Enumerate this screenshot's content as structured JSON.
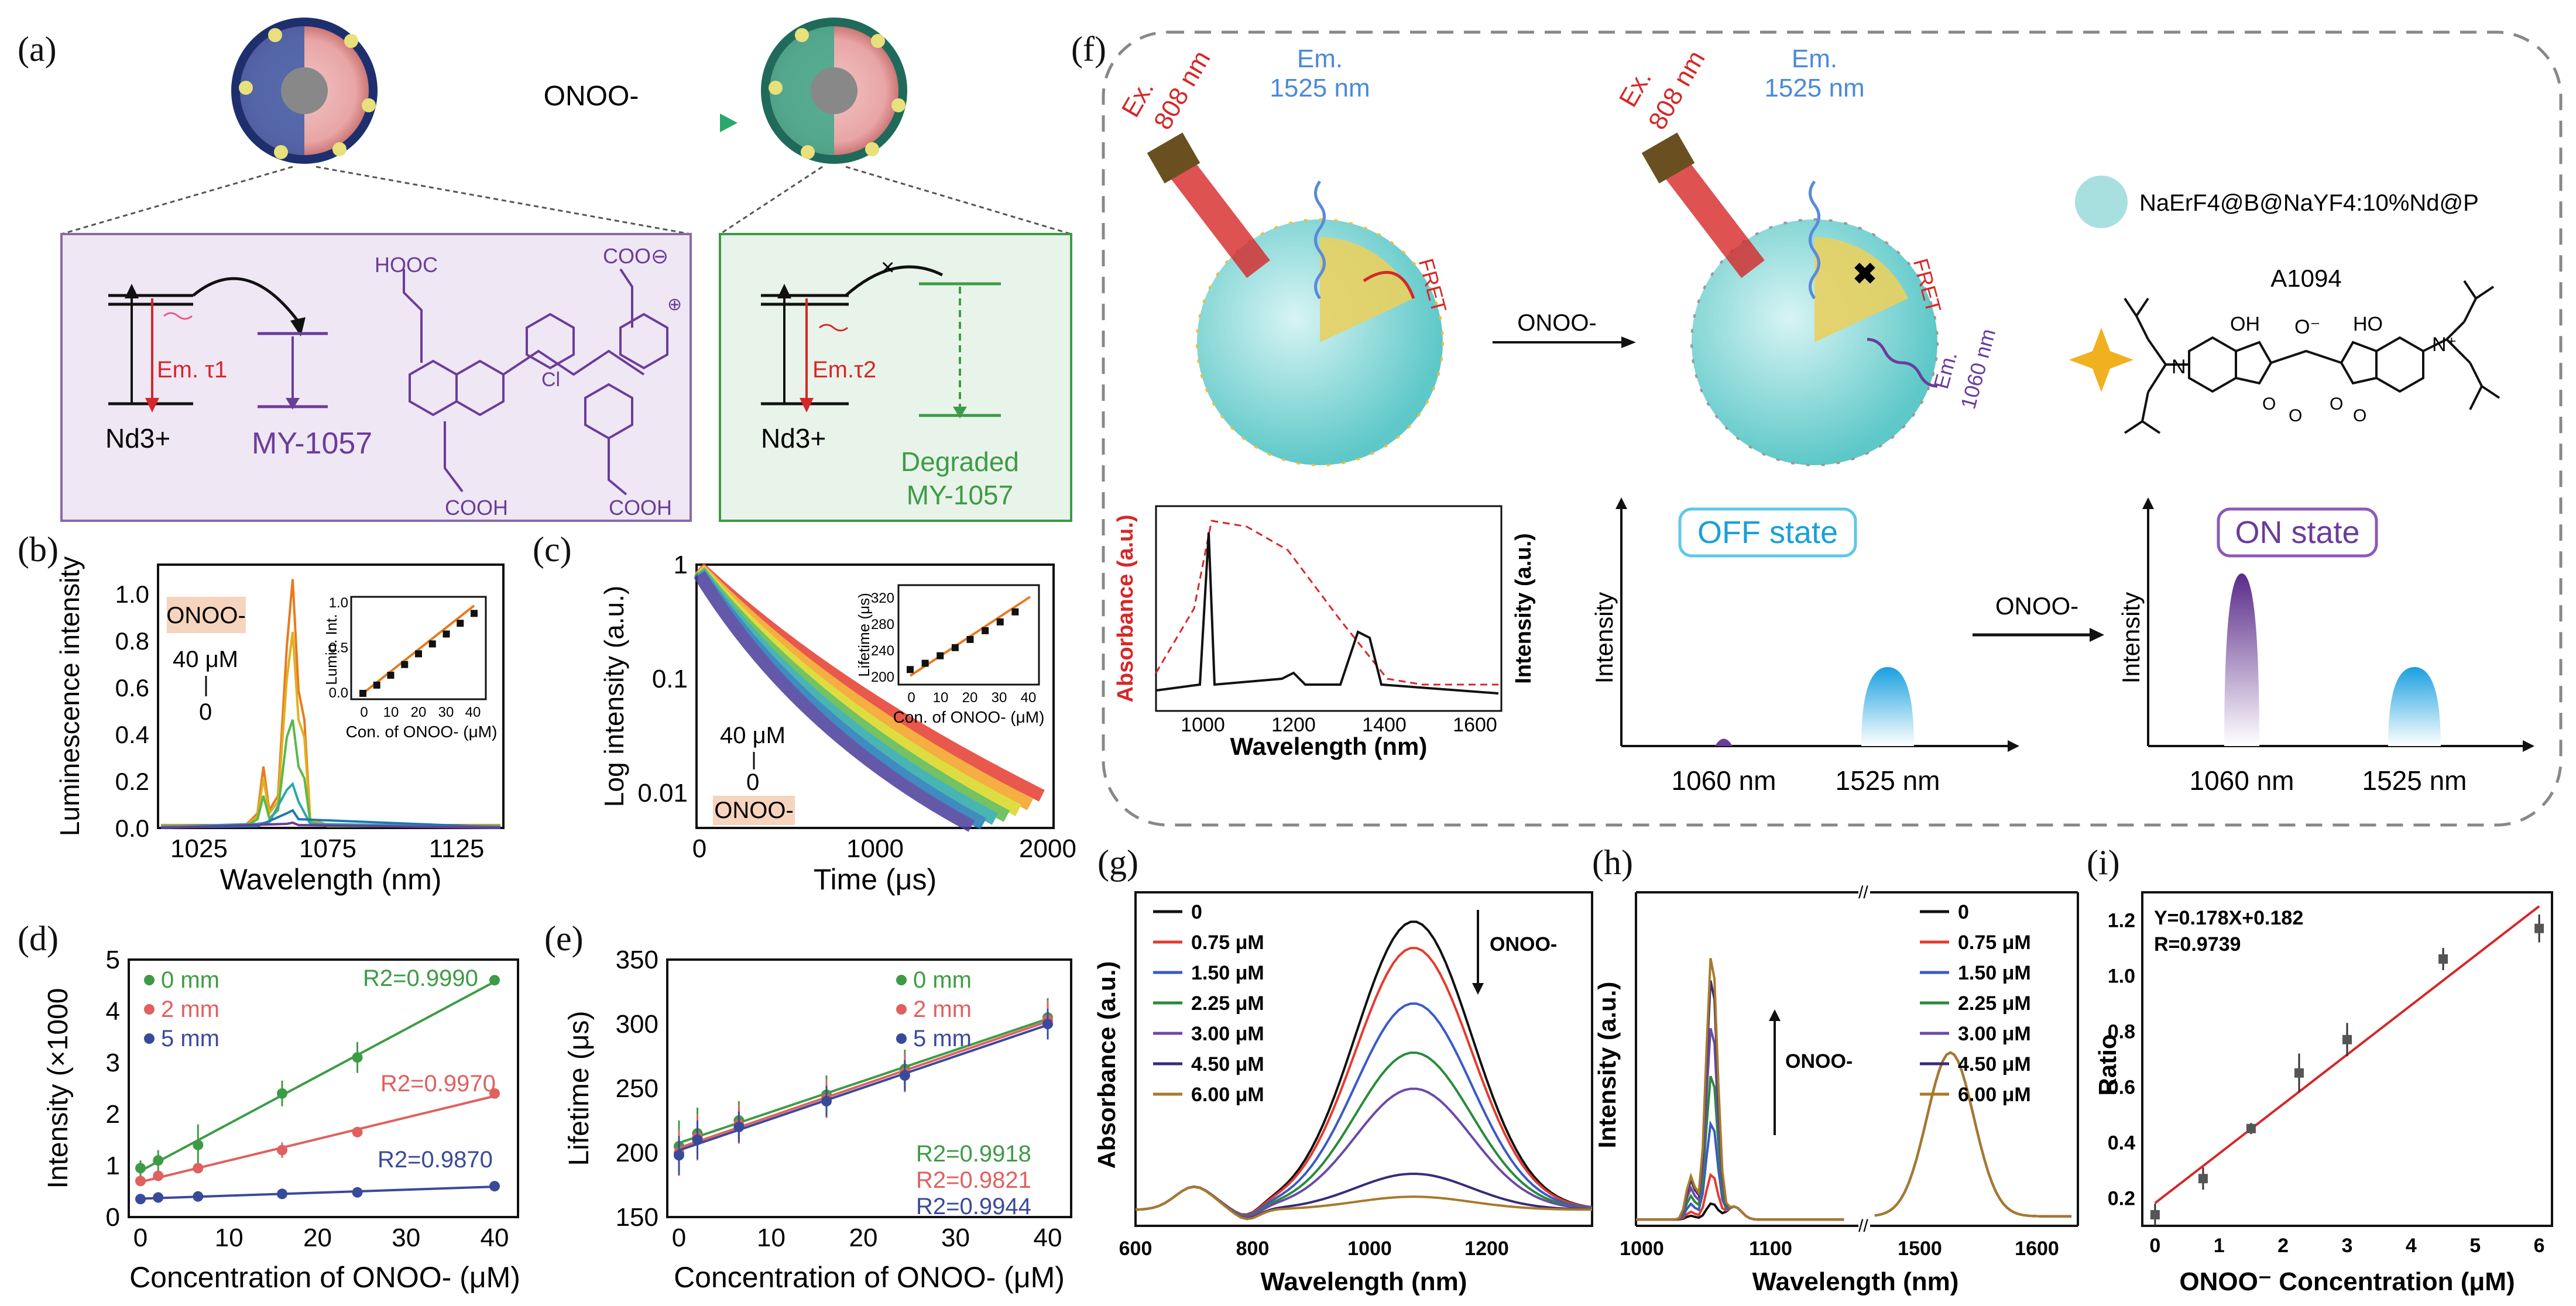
{
  "panel_labels": {
    "a": "(a)",
    "b": "(b)",
    "c": "(c)",
    "d": "(d)",
    "e": "(e)",
    "f": "(f)",
    "g": "(g)",
    "h": "(h)",
    "i": "(i)"
  },
  "colors": {
    "purple": "#6a3d9a",
    "green": "#3e9b45",
    "red": "#d62728",
    "blue": "#1f77b4",
    "teal": "#5ec8c8"
  },
  "panel_a": {
    "arrow_label": "ONOO-",
    "left_box": {
      "ion": "Nd3+",
      "em": "Em. τ1",
      "dye": "MY-1057",
      "hooc": "HOOC",
      "coo": "COO⊖",
      "cl": "Cl",
      "plus": "⊕",
      "cooh1": "COOH",
      "cooh2": "COOH"
    },
    "right_box": {
      "ion": "Nd3+",
      "em": "Em.τ2",
      "dye_line1": "Degraded",
      "dye_line2": "MY-1057"
    }
  },
  "panel_b": {
    "ylabel": "Luminescence intensity",
    "xlabel": "Wavelength (nm)",
    "xticks": [
      "1025",
      "1075",
      "1125"
    ],
    "yticks": [
      "0.0",
      "0.2",
      "0.4",
      "0.6",
      "0.8",
      "1.0"
    ],
    "tag": "ONOO-",
    "conc_top": "40 μM",
    "conc_bottom": "0",
    "inset": {
      "ylabel": "Lumin. Int.",
      "xlabel": "Con. of ONOO- (μM)",
      "xticks": [
        "0",
        "10",
        "20",
        "30",
        "40"
      ],
      "yticks": [
        "0.0",
        "0.5",
        "1.0"
      ]
    }
  },
  "panel_c": {
    "ylabel": "Log intensity (a.u.)",
    "xlabel": "Time (μs)",
    "xticks": [
      "0",
      "1000",
      "2000"
    ],
    "yticks": [
      "1",
      "0.1",
      "0.01"
    ],
    "tag": "ONOO-",
    "conc_top": "40 μM",
    "conc_bottom": "0",
    "inset": {
      "ylabel": "Lifetime (μs)",
      "xlabel": "Con. of ONOO- (μM)",
      "xticks": [
        "0",
        "10",
        "20",
        "30",
        "40"
      ],
      "yticks": [
        "200",
        "240",
        "280",
        "320"
      ]
    }
  },
  "panel_d": {
    "ylabel": "Intensity (×1000",
    "xlabel": "Concentration of ONOO- (μM)",
    "xticks": [
      "0",
      "10",
      "20",
      "30",
      "40"
    ],
    "yticks": [
      "0",
      "1",
      "2",
      "3",
      "4",
      "5"
    ],
    "legend": [
      "0 mm",
      "2 mm",
      "5 mm"
    ],
    "r2": [
      "R2=0.9990",
      "R2=0.9970",
      "R2=0.9870"
    ]
  },
  "panel_e": {
    "ylabel": "Lifetime (μs)",
    "xlabel": "Concentration of ONOO- (μM)",
    "xticks": [
      "0",
      "10",
      "20",
      "30",
      "40"
    ],
    "yticks": [
      "150",
      "200",
      "250",
      "300",
      "350"
    ],
    "legend": [
      "0 mm",
      "2 mm",
      "5 mm"
    ],
    "r2": [
      "R2=0.9918",
      "R2=0.9821",
      "R2=0.9944"
    ]
  },
  "panel_f": {
    "ex1": "Ex.",
    "ex1b": "808 nm",
    "em1": "Em.",
    "em1b": "1525 nm",
    "fret1": "FRET",
    "arrow": "ONOO-",
    "ex2": "Ex.",
    "ex2b": "808 nm",
    "em2": "Em.",
    "em2b": "1525 nm",
    "fret2": "FRET",
    "em3": "Em.",
    "em3b": "1060 nm",
    "np_label": "NaErF4@B@NaYF4:10%Nd@P",
    "dye": "A1094",
    "oh1": "OH",
    "o_minus": "O⁻",
    "oh2": "HO",
    "n1": "N",
    "n2": "N⁺",
    "o1": "O",
    "o2": "O",
    "o3": "O",
    "o4": "O",
    "spec": {
      "ylabel_left": "Absorbance (a.u.)",
      "ylabel_right": "Intensity (a.u.)",
      "xlabel": "Wavelength (nm)",
      "xticks": [
        "1000",
        "1200",
        "1400",
        "1600"
      ]
    },
    "off": {
      "title": "OFF state",
      "ylabel": "Intensity",
      "x1": "1060 nm",
      "x2": "1525 nm"
    },
    "arrow2": "ONOO-",
    "on": {
      "title": "ON state",
      "ylabel": "Intensity",
      "x1": "1060 nm",
      "x2": "1525 nm"
    }
  },
  "panel_g": {
    "ylabel": "Absorbance (a.u.)",
    "xlabel": "Wavelength (nm)",
    "xticks": [
      "600",
      "800",
      "1000",
      "1200"
    ],
    "legend": [
      "0",
      "0.75 μM",
      "1.50 μM",
      "2.25 μM",
      "3.00 μM",
      "4.50 μM",
      "6.00 μM"
    ],
    "arrow_label": "ONOO-"
  },
  "panel_h": {
    "ylabel": "Intensity (a.u.)",
    "xlabel": "Wavelength (nm)",
    "xticks": [
      "1000",
      "1100",
      "1500",
      "1600"
    ],
    "legend": [
      "0",
      "0.75 μM",
      "1.50 μM",
      "2.25 μM",
      "3.00 μM",
      "4.50 μM",
      "6.00 μM"
    ],
    "arrow_label": "ONOO-"
  },
  "panel_i": {
    "ylabel": "Ratio",
    "xlabel": "ONOO⁻ Concentration (μM)",
    "xticks": [
      "0",
      "1",
      "2",
      "3",
      "4",
      "5",
      "6"
    ],
    "yticks": [
      "0.2",
      "0.4",
      "0.6",
      "0.8",
      "1.0",
      "1.2"
    ],
    "eq": "Y=0.178X+0.182",
    "r": "R=0.9739"
  },
  "chart_data": [
    {
      "id": "b-inset",
      "type": "scatter",
      "title": "",
      "xlabel": "Con. of ONOO- (μM)",
      "ylabel": "Lumin. Int.",
      "x": [
        0,
        5,
        10,
        15,
        20,
        25,
        30,
        35,
        40
      ],
      "values": [
        0.0,
        0.1,
        0.22,
        0.35,
        0.48,
        0.6,
        0.72,
        0.85,
        0.97
      ],
      "xlim": [
        0,
        40
      ],
      "ylim": [
        0,
        1.1
      ]
    },
    {
      "id": "c-inset",
      "type": "scatter",
      "xlabel": "Con. of ONOO- (μM)",
      "ylabel": "Lifetime (μs)",
      "x": [
        0,
        5,
        10,
        15,
        20,
        25,
        30,
        35
      ],
      "values": [
        200,
        210,
        222,
        235,
        248,
        262,
        276,
        292
      ],
      "xlim": [
        0,
        40
      ],
      "ylim": [
        190,
        330
      ]
    },
    {
      "id": "d",
      "type": "scatter",
      "xlabel": "Concentration of ONOO- (μM)",
      "ylabel": "Intensity (×1000",
      "x": [
        0,
        2,
        6.5,
        16,
        24.5,
        40
      ],
      "xlim": [
        0,
        40
      ],
      "ylim": [
        0,
        5
      ],
      "series": [
        {
          "name": "0 mm",
          "values": [
            0.95,
            1.1,
            1.4,
            2.4,
            3.1,
            4.6
          ],
          "errors": [
            0.15,
            0.2,
            0.4,
            0.25,
            0.3,
            0.05
          ]
        },
        {
          "name": "2 mm",
          "values": [
            0.7,
            0.8,
            0.95,
            1.3,
            1.65,
            2.4
          ],
          "errors": [
            0.08,
            0.1,
            0.1,
            0.15,
            0.1,
            0.05
          ]
        },
        {
          "name": "5 mm",
          "values": [
            0.35,
            0.38,
            0.4,
            0.45,
            0.48,
            0.6
          ],
          "errors": [
            0.02,
            0.03,
            0.03,
            0.03,
            0.03,
            0.03
          ]
        }
      ]
    },
    {
      "id": "e",
      "type": "scatter",
      "xlabel": "Concentration of ONOO- (μM)",
      "ylabel": "Lifetime (μs)",
      "x": [
        0,
        2,
        6.5,
        16,
        24.5,
        40
      ],
      "xlim": [
        0,
        40
      ],
      "ylim": [
        150,
        350
      ],
      "series": [
        {
          "name": "0 mm",
          "values": [
            205,
            215,
            225,
            245,
            265,
            305
          ],
          "errors": [
            20,
            20,
            15,
            15,
            15,
            15
          ]
        },
        {
          "name": "2 mm",
          "values": [
            200,
            212,
            222,
            242,
            262,
            303
          ],
          "errors": [
            18,
            18,
            15,
            15,
            15,
            15
          ]
        },
        {
          "name": "5 mm",
          "values": [
            198,
            210,
            220,
            240,
            260,
            300
          ],
          "errors": [
            15,
            15,
            12,
            12,
            12,
            12
          ]
        }
      ]
    },
    {
      "id": "i",
      "type": "scatter",
      "xlabel": "ONOO⁻ Concentration (μM)",
      "ylabel": "Ratio",
      "x": [
        0,
        0.75,
        1.5,
        2.25,
        3.0,
        4.5,
        6.0
      ],
      "values": [
        0.14,
        0.27,
        0.45,
        0.65,
        0.77,
        1.06,
        1.17
      ],
      "errors": [
        0.04,
        0.04,
        0.02,
        0.07,
        0.06,
        0.04,
        0.05
      ],
      "fit": {
        "slope": 0.178,
        "intercept": 0.182
      },
      "xlim": [
        -0.2,
        6.2
      ],
      "ylim": [
        0.1,
        1.3
      ]
    },
    {
      "id": "g",
      "type": "line",
      "xlabel": "Wavelength (nm)",
      "ylabel": "Absorbance (a.u.)",
      "x": [
        600,
        700,
        800,
        1000,
        1075,
        1200,
        1380
      ],
      "xlim": [
        600,
        1380
      ],
      "series": [
        {
          "name": "0",
          "values": [
            0.05,
            0.1,
            0.05,
            0.8,
            0.88,
            0.7,
            0.05
          ]
        },
        {
          "name": "0.75 μM",
          "values": [
            0.05,
            0.1,
            0.05,
            0.74,
            0.8,
            0.64,
            0.05
          ]
        },
        {
          "name": "1.50 μM",
          "values": [
            0.05,
            0.1,
            0.05,
            0.58,
            0.63,
            0.5,
            0.05
          ]
        },
        {
          "name": "2.25 μM",
          "values": [
            0.05,
            0.1,
            0.05,
            0.44,
            0.48,
            0.38,
            0.05
          ]
        },
        {
          "name": "3.00 μM",
          "values": [
            0.05,
            0.11,
            0.05,
            0.34,
            0.37,
            0.3,
            0.05
          ]
        },
        {
          "name": "4.50 μM",
          "values": [
            0.04,
            0.11,
            0.05,
            0.1,
            0.11,
            0.1,
            0.02
          ]
        },
        {
          "name": "6.00 μM",
          "values": [
            0.04,
            0.11,
            0.04,
            0.04,
            0.04,
            0.04,
            0.01
          ]
        }
      ]
    },
    {
      "id": "h",
      "type": "line",
      "xlabel": "Wavelength (nm)",
      "ylabel": "Intensity (a.u.)",
      "x": [
        1000,
        1040,
        1058,
        1075,
        1140,
        1480,
        1540,
        1560,
        1660
      ],
      "series": [
        {
          "name": "0",
          "values": [
            0.01,
            0.02,
            0.05,
            0.02,
            0.01,
            0.02,
            0.52,
            0.5,
            0.02
          ]
        },
        {
          "name": "0.75 μM",
          "values": [
            0.01,
            0.04,
            0.14,
            0.04,
            0.01,
            0.02,
            0.52,
            0.5,
            0.02
          ]
        },
        {
          "name": "1.50 μM",
          "values": [
            0.01,
            0.08,
            0.3,
            0.06,
            0.01,
            0.02,
            0.52,
            0.5,
            0.02
          ]
        },
        {
          "name": "2.25 μM",
          "values": [
            0.01,
            0.12,
            0.45,
            0.08,
            0.01,
            0.02,
            0.52,
            0.5,
            0.02
          ]
        },
        {
          "name": "3.00 μM",
          "values": [
            0.01,
            0.16,
            0.6,
            0.1,
            0.01,
            0.02,
            0.52,
            0.5,
            0.02
          ]
        },
        {
          "name": "4.50 μM",
          "values": [
            0.01,
            0.2,
            0.75,
            0.12,
            0.01,
            0.02,
            0.52,
            0.5,
            0.02
          ]
        },
        {
          "name": "6.00 μM",
          "values": [
            0.01,
            0.22,
            0.82,
            0.14,
            0.01,
            0.02,
            0.52,
            0.5,
            0.02
          ]
        }
      ]
    }
  ]
}
